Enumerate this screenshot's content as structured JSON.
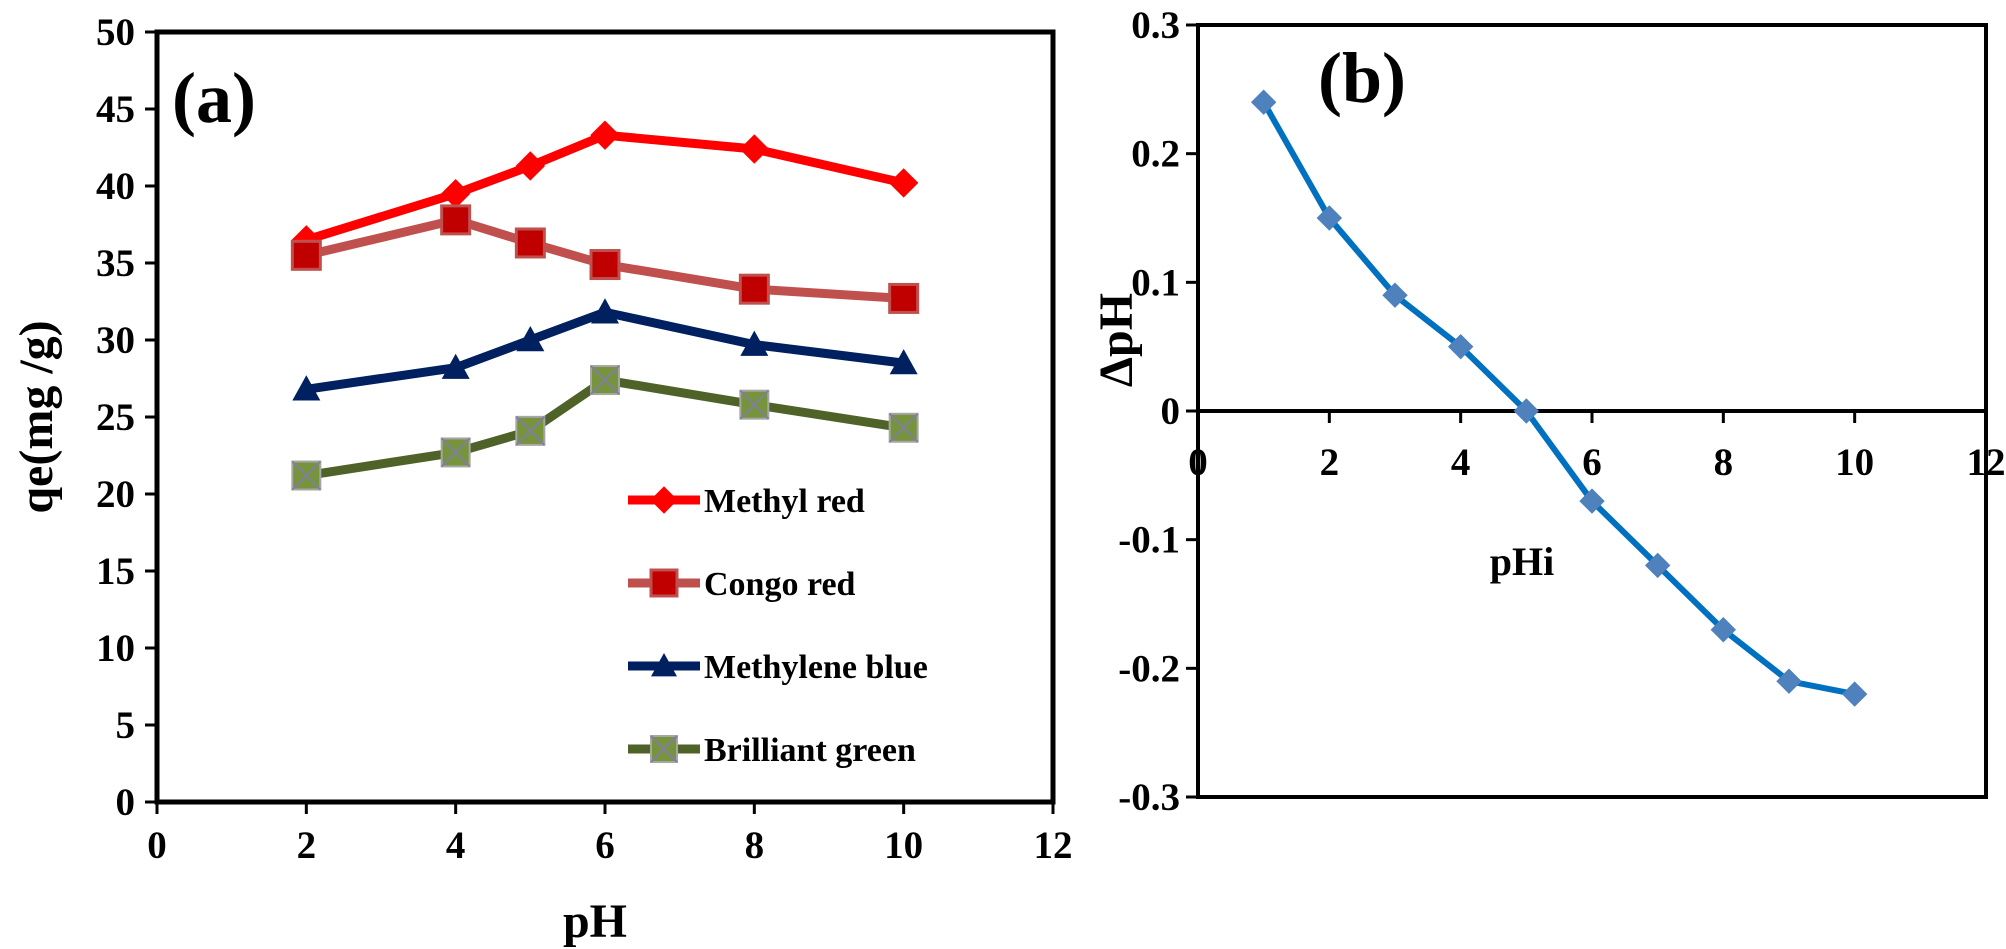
{
  "chart_data": [
    {
      "panel": "(a)",
      "type": "line",
      "xlabel": "pH",
      "ylabel": "qe(mg /g)",
      "xlim": [
        0,
        12
      ],
      "ylim": [
        0,
        50
      ],
      "xticks": [
        0,
        2,
        4,
        6,
        8,
        10,
        12
      ],
      "yticks": [
        0,
        5,
        10,
        15,
        20,
        25,
        30,
        35,
        40,
        45,
        50
      ],
      "x": [
        2,
        4,
        5,
        6,
        8,
        10
      ],
      "legend_position": "bottom-right",
      "series": [
        {
          "name": "Methyl red",
          "values": [
            36.5,
            39.5,
            41.3,
            43.3,
            42.4,
            40.2
          ],
          "color": "#FF0000",
          "marker": "diamond",
          "marker_color": "#FF0000"
        },
        {
          "name": "Congo red",
          "values": [
            35.5,
            37.8,
            36.3,
            34.9,
            33.3,
            32.7
          ],
          "color": "#C0504D",
          "marker": "square",
          "marker_color": "#C00000"
        },
        {
          "name": "Methylene blue",
          "values": [
            26.8,
            28.2,
            30.0,
            31.8,
            29.7,
            28.5
          ],
          "color": "#002060",
          "marker": "triangle",
          "marker_color": "#002060"
        },
        {
          "name": "Brilliant green",
          "values": [
            21.2,
            22.7,
            24.1,
            27.4,
            25.8,
            24.3
          ],
          "color": "#4F6228",
          "marker": "square-x",
          "marker_color": "#77933C"
        }
      ]
    },
    {
      "panel": "(b)",
      "type": "line",
      "xlabel": "pHi",
      "ylabel": "ΔpH",
      "xlim": [
        0,
        12
      ],
      "ylim": [
        -0.3,
        0.3
      ],
      "xticks": [
        0,
        2,
        4,
        6,
        8,
        10,
        12
      ],
      "yticks": [
        -0.3,
        -0.2,
        -0.1,
        0,
        0.1,
        0.2,
        0.3
      ],
      "ytick_labels": [
        "-0.3",
        "-0.2",
        "-0.1",
        "0",
        "0.1",
        "0.2",
        "0.3"
      ],
      "series": [
        {
          "name": "ΔpH",
          "x": [
            1,
            2,
            3,
            4,
            5,
            6,
            7,
            8,
            9,
            10
          ],
          "values": [
            0.24,
            0.15,
            0.09,
            0.05,
            0.0,
            -0.07,
            -0.12,
            -0.17,
            -0.21,
            -0.22
          ],
          "color": "#0070C0",
          "marker": "diamond",
          "marker_color": "#4F81BD"
        }
      ]
    }
  ]
}
